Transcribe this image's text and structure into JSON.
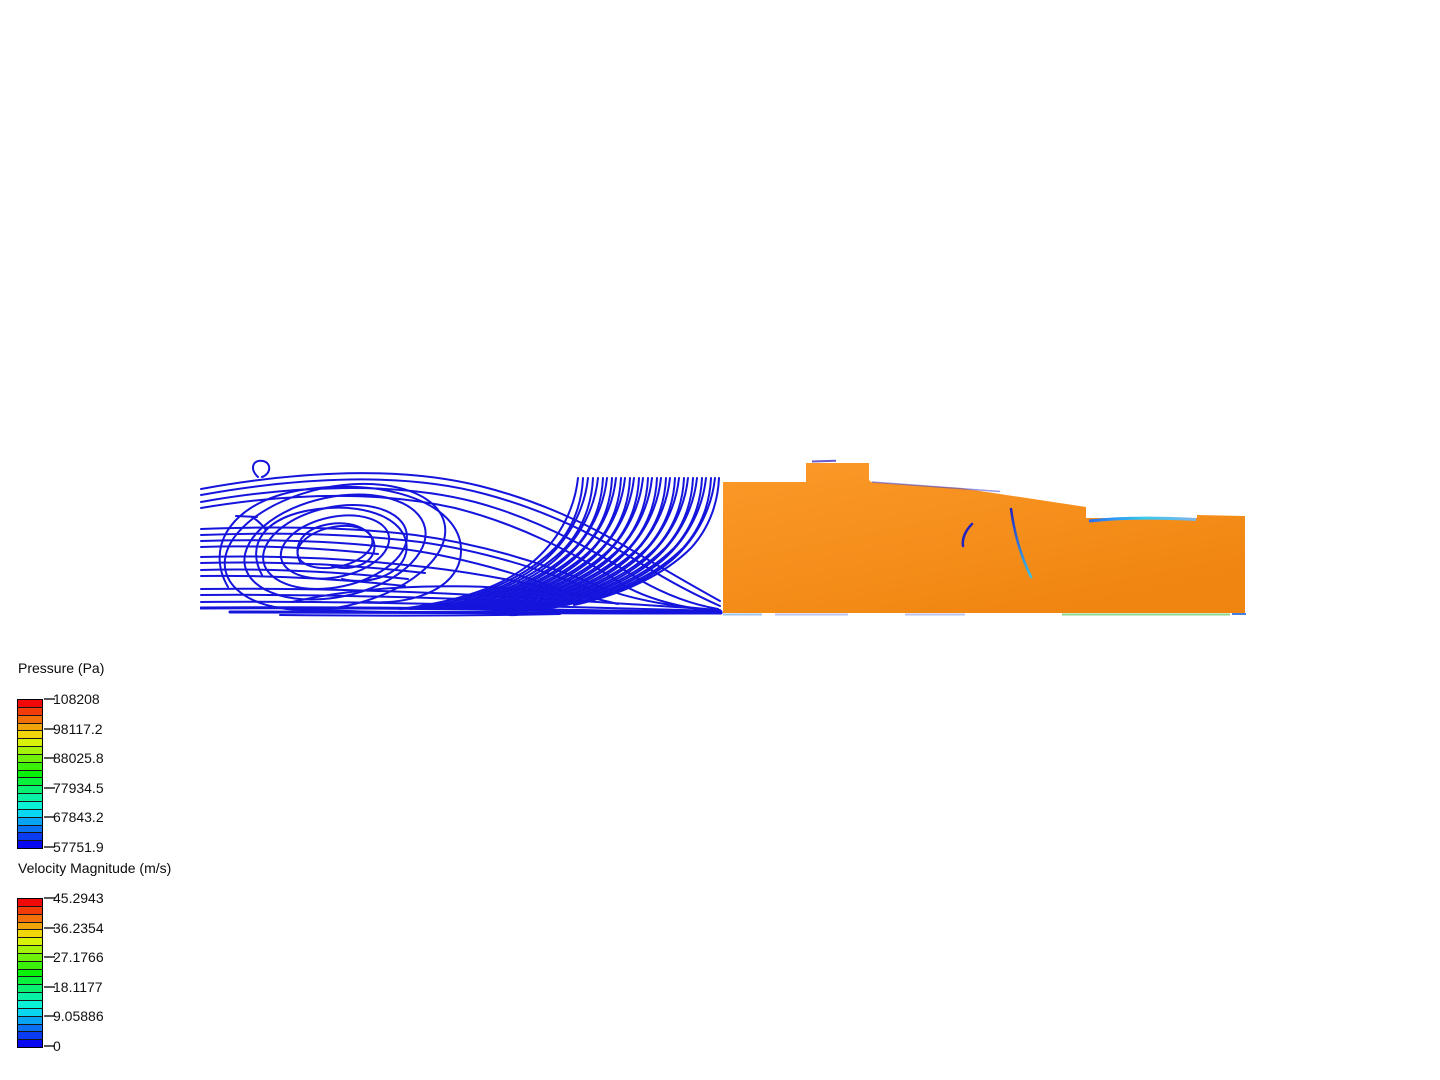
{
  "legends": [
    {
      "id": "pressure",
      "title": "Pressure (Pa)",
      "tick_labels": [
        "108208",
        "98117.2",
        "88025.8",
        "77934.5",
        "67843.2",
        "57751.9"
      ],
      "band_colors": [
        "#f10909",
        "#f13c09",
        "#f17009",
        "#f1a409",
        "#f1d709",
        "#d7f109",
        "#a4f109",
        "#70f109",
        "#3cf109",
        "#09f109",
        "#09f13c",
        "#09f170",
        "#09f1a4",
        "#09f1d7",
        "#09d7f1",
        "#09a4f1",
        "#0970f1",
        "#093cf1",
        "#0909f1"
      ]
    },
    {
      "id": "velocity",
      "title": "Velocity Magnitude (m/s)",
      "tick_labels": [
        "45.2943",
        "36.2354",
        "27.1766",
        "18.1177",
        "9.05886",
        "0"
      ],
      "band_colors": [
        "#f10909",
        "#f13c09",
        "#f17009",
        "#f1a409",
        "#f1d709",
        "#d7f109",
        "#a4f109",
        "#70f109",
        "#3cf109",
        "#09f109",
        "#09f13c",
        "#09f170",
        "#09f1a4",
        "#09f1d7",
        "#09d7f1",
        "#09a4f1",
        "#0970f1",
        "#093cf1",
        "#0909f1"
      ]
    }
  ],
  "colors": {
    "background": "#ffffff",
    "streamline_blue": "#1414dd",
    "body_orange_light": "#fb9928",
    "body_orange_dark": "#f08510",
    "windshield_blue": "#2b6cf0",
    "windshield_cyan": "#35c8ee",
    "windshield_fade": "#7fb4e8",
    "arc_blue": "#2222c0",
    "arc_cyan": "#38c0e8",
    "bump_purple": "#6a5acd",
    "edge_blue_fringe": "#4646d7",
    "fringe_lightblue": "#9fc3ef",
    "fringe_lavender": "#b9c4ee",
    "fringe_green": "#8fd48f",
    "fringe_blue": "#4a7de0"
  },
  "chart_data": [
    {
      "type": "colorbar",
      "title": "Pressure (Pa)",
      "unit": "Pa",
      "orientation": "vertical",
      "min": 57751.9,
      "max": 108208,
      "ticks": [
        108208,
        98117.2,
        88025.8,
        77934.5,
        67843.2,
        57751.9
      ],
      "bands": 19,
      "colormap": "rainbow, red at max (top) to blue at min (bottom)",
      "legend_position": "bottom-left"
    },
    {
      "type": "colorbar",
      "title": "Velocity Magnitude (m/s)",
      "unit": "m/s",
      "orientation": "vertical",
      "min": 0,
      "max": 45.2943,
      "ticks": [
        45.2943,
        36.2354,
        27.1766,
        18.1177,
        9.05886,
        0
      ],
      "bands": 19,
      "colormap": "rainbow, red at max (top) to blue at min (bottom)",
      "legend_position": "bottom-left"
    }
  ]
}
